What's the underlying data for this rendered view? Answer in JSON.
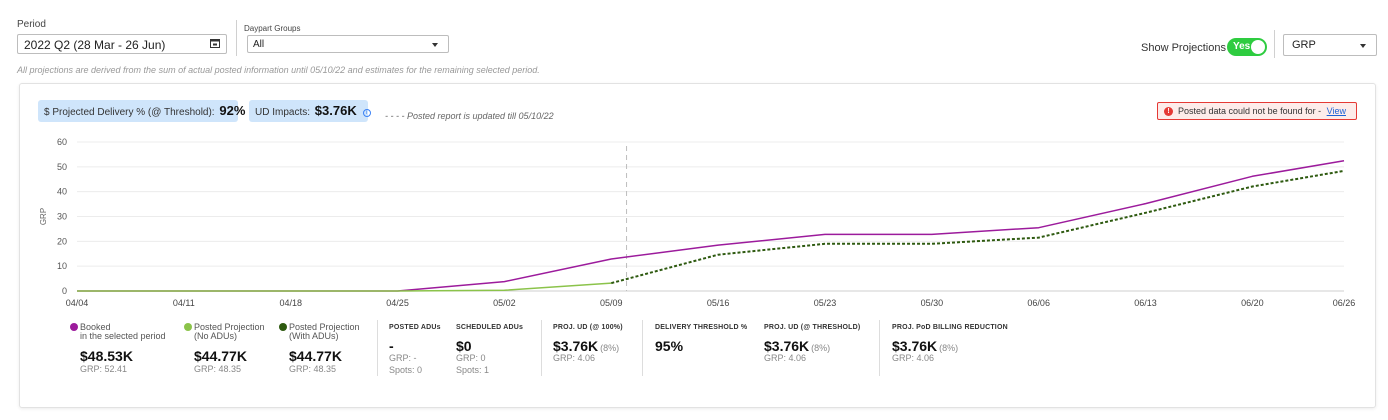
{
  "filters": {
    "period_label": "Period",
    "period_value": "2022 Q2 (28 Mar - 26 Jun)",
    "daypart_label": "Daypart Groups",
    "daypart_value": "All",
    "note": "All projections are derived from the sum of actual posted information until 05/10/22 and estimates for the remaining selected period.",
    "show_projections_label": "Show Projections",
    "toggle_text": "Yes",
    "metric_select": "GRP"
  },
  "summary": {
    "delivery_label": "$ Projected Delivery % (@ Threshold):",
    "delivery_value": "92%",
    "impacts_label": "UD Impacts:",
    "impacts_value": "$3.76K",
    "posted_note": "- - - - Posted report is updated till 05/10/22",
    "alert_text": "Posted data could not be found for -",
    "alert_link": "View"
  },
  "chart_data": {
    "type": "line",
    "ylabel": "GRP",
    "ylim": [
      0,
      60
    ],
    "yticks": [
      "0",
      "10",
      "20",
      "30",
      "40",
      "50",
      "60"
    ],
    "x": [
      "04/04",
      "04/11",
      "04/18",
      "04/25",
      "05/02",
      "05/09",
      "05/16",
      "05/23",
      "05/30",
      "06/06",
      "06/13",
      "06/20",
      "06/26"
    ],
    "posted_marker": "05/10",
    "series": [
      {
        "name": "Booked",
        "color": "#9c1b9c",
        "style": "solid",
        "points": [
          [
            "04/04",
            0
          ],
          [
            "04/11",
            0
          ],
          [
            "04/18",
            0
          ],
          [
            "04/25",
            0
          ],
          [
            "05/02",
            3.8
          ],
          [
            "05/09",
            12.9
          ],
          [
            "05/16",
            18.5
          ],
          [
            "05/23",
            22.8
          ],
          [
            "05/30",
            22.8
          ],
          [
            "06/06",
            25.5
          ],
          [
            "06/13",
            35.2
          ],
          [
            "06/20",
            46.2
          ],
          [
            "06/26",
            52.41
          ]
        ]
      },
      {
        "name": "Posted Projection (No ADUs)",
        "color": "#8bc34a",
        "style": "solid",
        "points": [
          [
            "04/04",
            0
          ],
          [
            "04/11",
            0
          ],
          [
            "04/18",
            0
          ],
          [
            "04/25",
            0
          ],
          [
            "05/02",
            0.3
          ],
          [
            "05/09",
            3.2
          ]
        ]
      },
      {
        "name": "Posted Projection (With ADUs)",
        "color": "#2e5a10",
        "style": "dashed",
        "points": [
          [
            "05/09",
            3.2
          ],
          [
            "05/16",
            14.6
          ],
          [
            "05/23",
            19.0
          ],
          [
            "05/30",
            19.0
          ],
          [
            "06/06",
            21.5
          ],
          [
            "06/13",
            31.5
          ],
          [
            "06/20",
            42.1
          ],
          [
            "06/26",
            48.35
          ]
        ]
      }
    ]
  },
  "legend": {
    "booked": {
      "line1": "Booked",
      "line2": "in the selected period",
      "value": "$48.53K",
      "grp": "GRP: 52.41",
      "color": "#9c1b9c"
    },
    "no_adus": {
      "line1": "Posted Projection",
      "line2": "(No ADUs)",
      "value": "$44.77K",
      "grp": "GRP: 48.35",
      "color": "#8bc34a"
    },
    "with_adus": {
      "line1": "Posted Projection",
      "line2": "(With ADUs)",
      "value": "$44.77K",
      "grp": "GRP: 48.35",
      "color": "#2e5a10"
    }
  },
  "stats": {
    "posted_adus": {
      "head": "POSTED ADUs",
      "value": "-",
      "grp": "GRP: -",
      "spots": "Spots: 0"
    },
    "scheduled_adus": {
      "head": "SCHEDULED ADUs",
      "value": "$0",
      "grp": "GRP: 0",
      "spots": "Spots: 1"
    },
    "proj_ud_100": {
      "head": "PROJ. UD (@ 100%)",
      "value": "$3.76K",
      "pct": "(8%)",
      "grp": "GRP: 4.06"
    },
    "delivery_threshold": {
      "head": "DELIVERY THRESHOLD %",
      "value": "95%"
    },
    "proj_ud_threshold": {
      "head": "PROJ. UD (@ THRESHOLD)",
      "value": "$3.76K",
      "pct": "(8%)",
      "grp": "GRP: 4.06"
    },
    "billing_reduction": {
      "head": "PROJ. PoD BILLING REDUCTION",
      "value": "$3.76K",
      "pct": "(8%)",
      "grp": "GRP: 4.06"
    }
  }
}
